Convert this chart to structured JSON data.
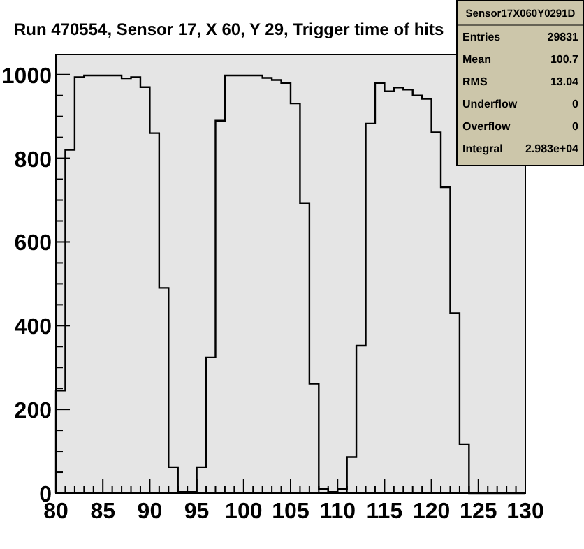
{
  "chart_data": {
    "type": "histogram",
    "title": "Run 470554, Sensor 17, X 60, Y 29, Trigger time of hits",
    "bins": [
      80,
      81,
      82,
      83,
      84,
      85,
      86,
      87,
      88,
      89,
      90,
      91,
      92,
      93,
      94,
      95,
      96,
      97,
      98,
      99,
      100,
      101,
      102,
      103,
      104,
      105,
      106,
      107,
      108,
      109,
      110,
      111,
      112,
      113,
      114,
      115,
      116,
      117,
      118,
      119,
      120,
      121,
      122,
      123,
      124,
      125,
      126,
      127,
      128,
      129,
      130
    ],
    "values": [
      245,
      820,
      994,
      998,
      998,
      998,
      998,
      991,
      994,
      970,
      860,
      490,
      62,
      3,
      3,
      62,
      324,
      890,
      998,
      998,
      998,
      998,
      992,
      987,
      980,
      931,
      693,
      261,
      10,
      3,
      10,
      86,
      352,
      883,
      980,
      960,
      969,
      964,
      950,
      942,
      862,
      731,
      430,
      117,
      0,
      0,
      0,
      0,
      0,
      0
    ],
    "color": "#000000",
    "xlim": [
      80,
      130
    ],
    "xticks": [
      80,
      85,
      90,
      95,
      100,
      105,
      110,
      115,
      120,
      125,
      130
    ],
    "ylim": [
      0,
      1048
    ],
    "yticks": [
      0,
      200,
      400,
      600,
      800,
      1000
    ],
    "grid": false,
    "annotations": [
      "Sensor17X060Y0291D",
      "Entries",
      "29831",
      "Mean",
      "100.7",
      "RMS",
      "13.04",
      "Underflow",
      "0",
      "Overflow",
      "0",
      "Integral",
      "2.983e+04"
    ]
  }
}
